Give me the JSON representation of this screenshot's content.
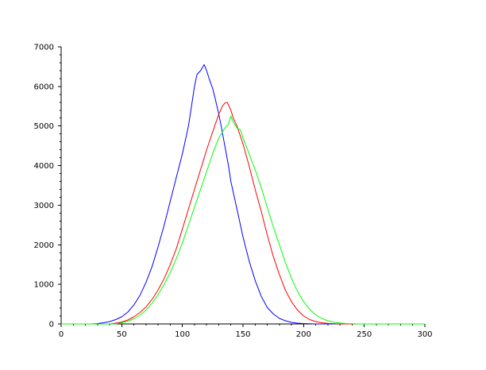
{
  "chart_data": {
    "type": "line",
    "title": "",
    "xlabel": "",
    "ylabel": "",
    "xlim": [
      0,
      300
    ],
    "ylim": [
      0,
      7000
    ],
    "x_ticks": [
      0,
      50,
      100,
      150,
      200,
      250,
      300
    ],
    "x_tick_labels": [
      "0",
      "50",
      "100",
      "150",
      "200",
      "250",
      "300"
    ],
    "y_ticks": [
      0,
      1000,
      2000,
      3000,
      4000,
      5000,
      6000,
      7000
    ],
    "y_tick_labels": [
      "0",
      "1000",
      "2000",
      "3000",
      "4000",
      "5000",
      "6000",
      "7000"
    ],
    "grid": false,
    "legend": "none",
    "series": [
      {
        "color": "#0000ff",
        "points": [
          [
            0,
            0
          ],
          [
            25,
            0
          ],
          [
            30,
            10
          ],
          [
            35,
            30
          ],
          [
            40,
            60
          ],
          [
            45,
            110
          ],
          [
            50,
            180
          ],
          [
            55,
            300
          ],
          [
            60,
            480
          ],
          [
            65,
            720
          ],
          [
            70,
            1050
          ],
          [
            75,
            1450
          ],
          [
            80,
            1950
          ],
          [
            85,
            2500
          ],
          [
            90,
            3100
          ],
          [
            95,
            3700
          ],
          [
            100,
            4300
          ],
          [
            105,
            5000
          ],
          [
            108,
            5600
          ],
          [
            110,
            6000
          ],
          [
            112,
            6300
          ],
          [
            115,
            6400
          ],
          [
            117,
            6500
          ],
          [
            118,
            6550
          ],
          [
            120,
            6400
          ],
          [
            122,
            6200
          ],
          [
            125,
            5950
          ],
          [
            127,
            5700
          ],
          [
            130,
            5300
          ],
          [
            132,
            5000
          ],
          [
            135,
            4500
          ],
          [
            138,
            4000
          ],
          [
            140,
            3600
          ],
          [
            145,
            2900
          ],
          [
            150,
            2200
          ],
          [
            155,
            1600
          ],
          [
            160,
            1100
          ],
          [
            165,
            700
          ],
          [
            170,
            420
          ],
          [
            175,
            250
          ],
          [
            180,
            140
          ],
          [
            185,
            80
          ],
          [
            190,
            40
          ],
          [
            195,
            20
          ],
          [
            200,
            10
          ],
          [
            210,
            0
          ],
          [
            300,
            0
          ]
        ]
      },
      {
        "color": "#ff0000",
        "points": [
          [
            0,
            0
          ],
          [
            40,
            0
          ],
          [
            45,
            20
          ],
          [
            50,
            50
          ],
          [
            55,
            100
          ],
          [
            60,
            180
          ],
          [
            65,
            290
          ],
          [
            70,
            430
          ],
          [
            75,
            620
          ],
          [
            80,
            860
          ],
          [
            85,
            1150
          ],
          [
            90,
            1500
          ],
          [
            95,
            1900
          ],
          [
            100,
            2400
          ],
          [
            105,
            2900
          ],
          [
            110,
            3400
          ],
          [
            115,
            3900
          ],
          [
            120,
            4400
          ],
          [
            125,
            4850
          ],
          [
            130,
            5300
          ],
          [
            133,
            5500
          ],
          [
            135,
            5580
          ],
          [
            137,
            5600
          ],
          [
            140,
            5400
          ],
          [
            142,
            5200
          ],
          [
            145,
            5000
          ],
          [
            150,
            4550
          ],
          [
            155,
            4000
          ],
          [
            160,
            3400
          ],
          [
            165,
            2850
          ],
          [
            170,
            2250
          ],
          [
            175,
            1700
          ],
          [
            180,
            1250
          ],
          [
            185,
            850
          ],
          [
            190,
            560
          ],
          [
            195,
            350
          ],
          [
            200,
            200
          ],
          [
            205,
            110
          ],
          [
            210,
            60
          ],
          [
            215,
            30
          ],
          [
            220,
            15
          ],
          [
            230,
            0
          ],
          [
            300,
            0
          ]
        ]
      },
      {
        "color": "#00ff00",
        "points": [
          [
            0,
            0
          ],
          [
            45,
            0
          ],
          [
            50,
            30
          ],
          [
            55,
            70
          ],
          [
            60,
            130
          ],
          [
            65,
            220
          ],
          [
            70,
            350
          ],
          [
            75,
            520
          ],
          [
            80,
            740
          ],
          [
            85,
            1000
          ],
          [
            90,
            1300
          ],
          [
            95,
            1650
          ],
          [
            100,
            2050
          ],
          [
            105,
            2500
          ],
          [
            110,
            2950
          ],
          [
            115,
            3400
          ],
          [
            120,
            3850
          ],
          [
            125,
            4300
          ],
          [
            130,
            4700
          ],
          [
            135,
            4950
          ],
          [
            138,
            5050
          ],
          [
            140,
            5250
          ],
          [
            142,
            5100
          ],
          [
            145,
            4950
          ],
          [
            148,
            4900
          ],
          [
            150,
            4700
          ],
          [
            155,
            4300
          ],
          [
            160,
            3900
          ],
          [
            165,
            3450
          ],
          [
            170,
            2950
          ],
          [
            175,
            2450
          ],
          [
            180,
            2000
          ],
          [
            185,
            1550
          ],
          [
            190,
            1150
          ],
          [
            195,
            820
          ],
          [
            200,
            560
          ],
          [
            205,
            370
          ],
          [
            210,
            230
          ],
          [
            215,
            140
          ],
          [
            220,
            80
          ],
          [
            225,
            45
          ],
          [
            230,
            25
          ],
          [
            235,
            10
          ],
          [
            245,
            0
          ],
          [
            300,
            0
          ]
        ]
      }
    ]
  }
}
